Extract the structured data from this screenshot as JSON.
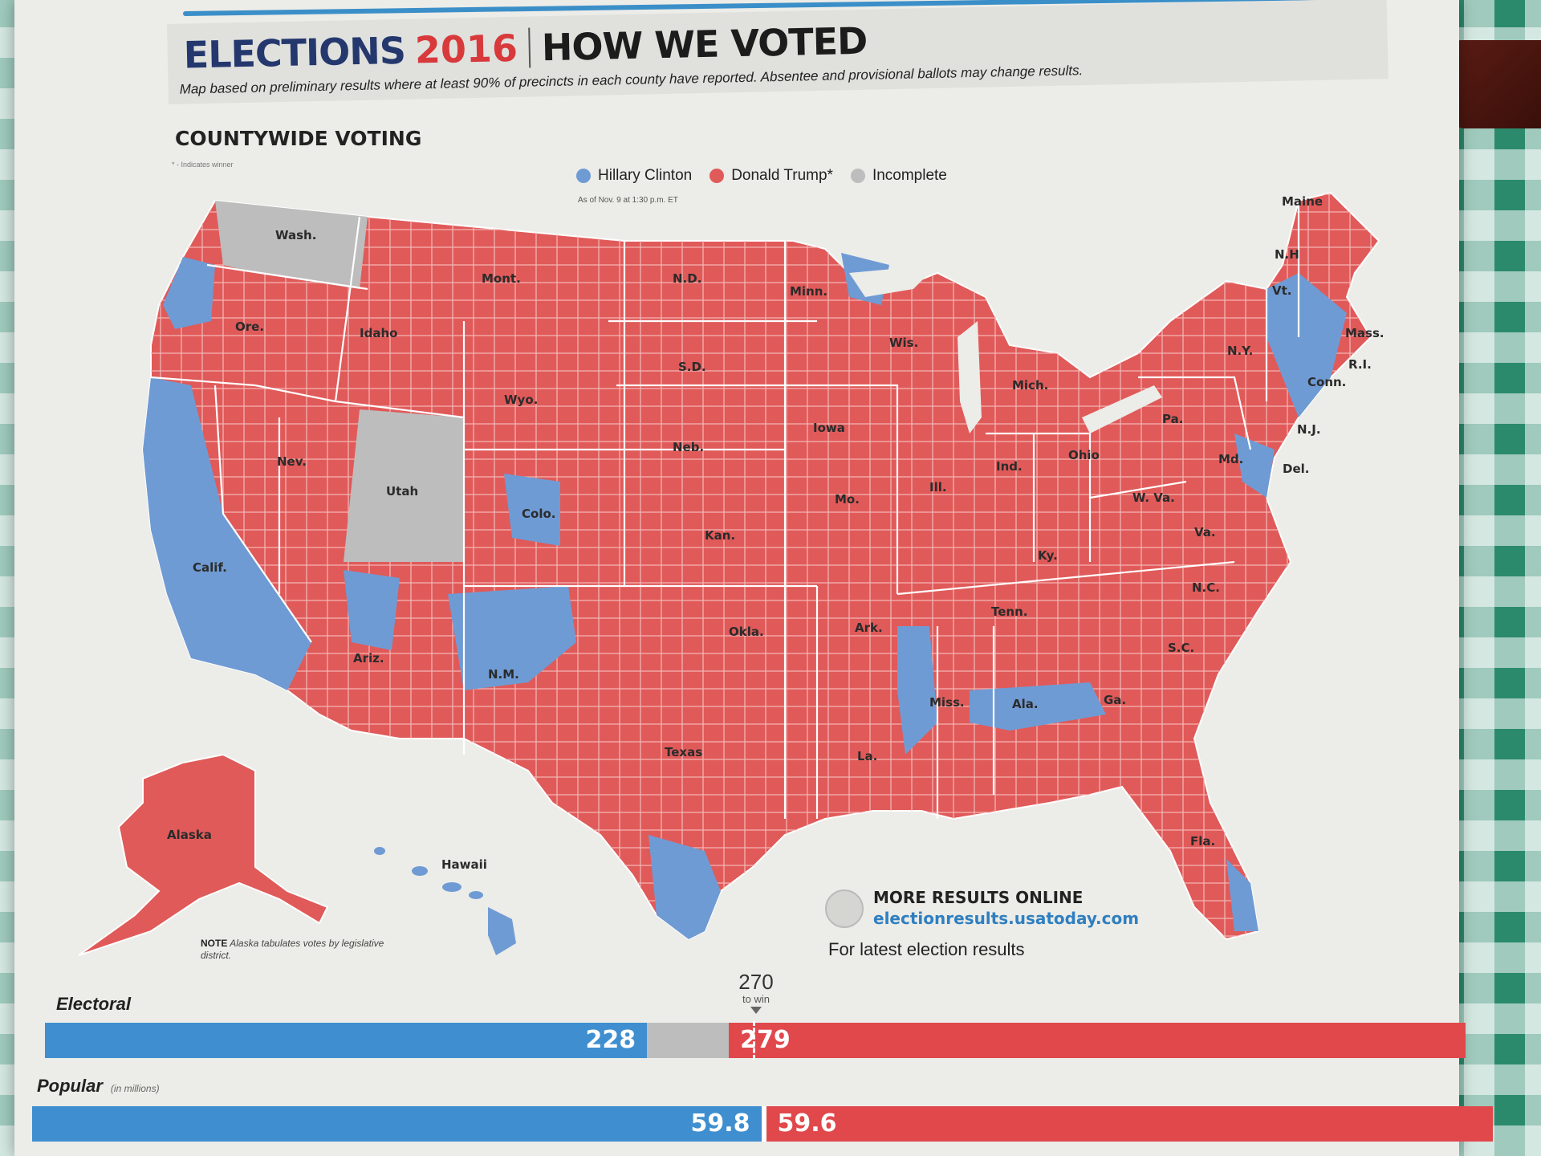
{
  "header": {
    "elections": "ELECTIONS",
    "year": "2016",
    "how_we_voted": "HOW WE VOTED",
    "subtitle": "Map based on preliminary results where at least 90% of precincts in each county have reported. Absentee and provisional ballots may change results."
  },
  "section_title": "COUNTYWIDE VOTING",
  "winner_note": "* - Indicates winner",
  "legend": {
    "items": [
      {
        "label": "Hillary Clinton",
        "color": "#6f9bd4"
      },
      {
        "label": "Donald Trump*",
        "color": "#e05a59"
      },
      {
        "label": "Incomplete",
        "color": "#bdbdbd"
      }
    ],
    "as_of": "As of Nov. 9 at 1:30 p.m. ET"
  },
  "colors": {
    "clinton": "#6f9bd4",
    "trump": "#e05a59",
    "incomplete": "#bdbdbd"
  },
  "states": {
    "wash": "Wash.",
    "ore": "Ore.",
    "calif": "Calif.",
    "idaho": "Idaho",
    "nev": "Nev.",
    "mont": "Mont.",
    "wyo": "Wyo.",
    "utah": "Utah",
    "colo": "Colo.",
    "ariz": "Ariz.",
    "nm": "N.M.",
    "nd": "N.D.",
    "sd": "S.D.",
    "neb": "Neb.",
    "kan": "Kan.",
    "okla": "Okla.",
    "texas": "Texas",
    "minn": "Minn.",
    "iowa": "Iowa",
    "mo": "Mo.",
    "ark": "Ark.",
    "la": "La.",
    "wis": "Wis.",
    "ill": "Ill.",
    "mich": "Mich.",
    "ind": "Ind.",
    "ohio": "Ohio",
    "ky": "Ky.",
    "tenn": "Tenn.",
    "miss": "Miss.",
    "ala": "Ala.",
    "ga": "Ga.",
    "fla": "Fla.",
    "sc": "S.C.",
    "nc": "N.C.",
    "va": "Va.",
    "wva": "W. Va.",
    "pa": "Pa.",
    "ny": "N.Y.",
    "vt": "Vt.",
    "nh": "N.H",
    "maine": "Maine",
    "mass": "Mass.",
    "ri": "R.I.",
    "conn": "Conn.",
    "nj": "N.J.",
    "del": "Del.",
    "md": "Md.",
    "alaska": "Alaska",
    "hawaii": "Hawaii"
  },
  "note": {
    "bold": "NOTE",
    "text": "Alaska tabulates votes by legislative district."
  },
  "online": {
    "title": "MORE RESULTS ONLINE",
    "url": "electionresults.usatoday.com",
    "latest": "For latest election results"
  },
  "electoral": {
    "label": "Electoral",
    "clinton": 228,
    "trump": 279,
    "to_win": "270",
    "to_win_label": "to win",
    "clinton_text": "228",
    "trump_text": "279"
  },
  "popular": {
    "label": "Popular",
    "unit": "(in millions)",
    "clinton": 59.8,
    "trump": 59.6,
    "clinton_text": "59.8",
    "trump_text": "59.6"
  }
}
